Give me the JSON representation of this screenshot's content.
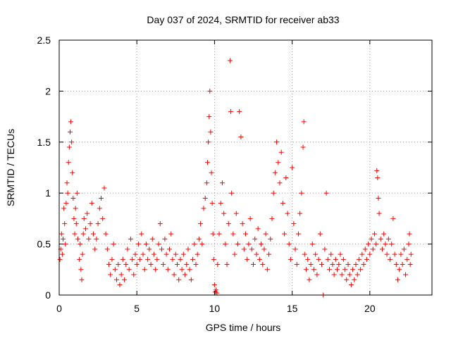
{
  "chart_data": {
    "type": "scatter",
    "title": "Day 037 of 2024, SRMTID for receiver ab33",
    "xlabel": "GPS time / hours",
    "ylabel": "SRMTID / TECUs",
    "xlim": [
      0,
      24
    ],
    "ylim": [
      0,
      2.5
    ],
    "xticks": [
      0,
      5,
      10,
      15,
      20
    ],
    "yticks": [
      0,
      0.5,
      1,
      1.5,
      2,
      2.5
    ],
    "grid": true,
    "marker_color": "#ff0000",
    "series": [
      {
        "name": "SRMTID",
        "points": [
          [
            0.05,
            0.35
          ],
          [
            0.1,
            0.45
          ],
          [
            0.15,
            0.6
          ],
          [
            0.2,
            0.4
          ],
          [
            0.25,
            0.55
          ],
          [
            0.3,
            0.85
          ],
          [
            0.35,
            0.7
          ],
          [
            0.4,
            0.5
          ],
          [
            0.45,
            0.9
          ],
          [
            0.5,
            1.1
          ],
          [
            0.55,
            1.0
          ],
          [
            0.6,
            1.3
          ],
          [
            0.65,
            1.45
          ],
          [
            0.7,
            1.6
          ],
          [
            0.75,
            1.7
          ],
          [
            0.8,
            1.5
          ],
          [
            0.85,
            1.2
          ],
          [
            0.9,
            0.95
          ],
          [
            0.95,
            0.75
          ],
          [
            1.0,
            0.6
          ],
          [
            1.05,
            0.85
          ],
          [
            1.1,
            0.7
          ],
          [
            1.15,
            1.0
          ],
          [
            1.2,
            0.55
          ],
          [
            1.3,
            0.35
          ],
          [
            1.35,
            0.5
          ],
          [
            1.4,
            0.25
          ],
          [
            1.45,
            0.15
          ],
          [
            1.5,
            0.4
          ],
          [
            1.55,
            0.6
          ],
          [
            1.6,
            0.75
          ],
          [
            1.7,
            0.65
          ],
          [
            1.8,
            0.8
          ],
          [
            1.9,
            0.55
          ],
          [
            2.0,
            0.7
          ],
          [
            2.1,
            0.9
          ],
          [
            2.2,
            0.6
          ],
          [
            2.3,
            0.45
          ],
          [
            2.4,
            0.55
          ],
          [
            2.5,
            0.7
          ],
          [
            2.6,
            0.85
          ],
          [
            2.7,
            0.95
          ],
          [
            2.8,
            0.75
          ],
          [
            2.9,
            1.05
          ],
          [
            3.0,
            0.6
          ],
          [
            3.1,
            0.45
          ],
          [
            3.2,
            0.3
          ],
          [
            3.3,
            0.2
          ],
          [
            3.4,
            0.35
          ],
          [
            3.5,
            0.5
          ],
          [
            3.6,
            0.25
          ],
          [
            3.7,
            0.15
          ],
          [
            3.8,
            0.3
          ],
          [
            3.9,
            0.1
          ],
          [
            4.0,
            0.2
          ],
          [
            4.1,
            0.35
          ],
          [
            4.2,
            0.15
          ],
          [
            4.3,
            0.3
          ],
          [
            4.4,
            0.45
          ],
          [
            4.5,
            0.25
          ],
          [
            4.6,
            0.55
          ],
          [
            4.7,
            0.35
          ],
          [
            4.8,
            0.2
          ],
          [
            4.9,
            0.4
          ],
          [
            5.0,
            0.3
          ],
          [
            5.1,
            0.5
          ],
          [
            5.2,
            0.35
          ],
          [
            5.3,
            0.6
          ],
          [
            5.4,
            0.4
          ],
          [
            5.5,
            0.25
          ],
          [
            5.6,
            0.5
          ],
          [
            5.7,
            0.35
          ],
          [
            5.8,
            0.45
          ],
          [
            5.9,
            0.3
          ],
          [
            6.0,
            0.55
          ],
          [
            6.1,
            0.4
          ],
          [
            6.2,
            0.25
          ],
          [
            6.3,
            0.35
          ],
          [
            6.4,
            0.5
          ],
          [
            6.5,
            0.7
          ],
          [
            6.6,
            0.45
          ],
          [
            6.7,
            0.3
          ],
          [
            6.8,
            0.55
          ],
          [
            6.9,
            0.4
          ],
          [
            7.0,
            0.25
          ],
          [
            7.1,
            0.45
          ],
          [
            7.2,
            0.6
          ],
          [
            7.3,
            0.35
          ],
          [
            7.4,
            0.2
          ],
          [
            7.5,
            0.4
          ],
          [
            7.6,
            0.3
          ],
          [
            7.7,
            0.15
          ],
          [
            7.8,
            0.35
          ],
          [
            7.9,
            0.25
          ],
          [
            8.0,
            0.4
          ],
          [
            8.1,
            0.2
          ],
          [
            8.2,
            0.3
          ],
          [
            8.3,
            0.45
          ],
          [
            8.4,
            0.25
          ],
          [
            8.5,
            0.15
          ],
          [
            8.6,
            0.35
          ],
          [
            8.7,
            0.5
          ],
          [
            8.8,
            0.3
          ],
          [
            8.9,
            0.4
          ],
          [
            9.0,
            0.55
          ],
          [
            9.1,
            0.7
          ],
          [
            9.2,
            0.5
          ],
          [
            9.3,
            0.85
          ],
          [
            9.4,
            0.95
          ],
          [
            9.5,
            1.1
          ],
          [
            9.55,
            1.3
          ],
          [
            9.6,
            1.5
          ],
          [
            9.65,
            1.75
          ],
          [
            9.7,
            2.0
          ],
          [
            9.75,
            1.6
          ],
          [
            9.8,
            1.2
          ],
          [
            9.85,
            0.9
          ],
          [
            9.9,
            0.6
          ],
          [
            9.95,
            0.35
          ],
          [
            10.0,
            0.1
          ],
          [
            10.05,
            0.03
          ],
          [
            10.1,
            0.05
          ],
          [
            10.15,
            0.02
          ],
          [
            10.2,
            0.3
          ],
          [
            10.3,
            0.6
          ],
          [
            10.4,
            0.9
          ],
          [
            10.5,
            1.1
          ],
          [
            10.6,
            0.8
          ],
          [
            10.7,
            0.5
          ],
          [
            10.8,
            0.3
          ],
          [
            10.9,
            0.7
          ],
          [
            11.0,
            2.3
          ],
          [
            11.05,
            1.8
          ],
          [
            11.1,
            1.0
          ],
          [
            11.2,
            0.6
          ],
          [
            11.3,
            0.4
          ],
          [
            11.4,
            0.8
          ],
          [
            11.5,
            0.5
          ],
          [
            11.6,
            1.8
          ],
          [
            11.7,
            1.55
          ],
          [
            11.8,
            0.7
          ],
          [
            11.9,
            0.45
          ],
          [
            12.0,
            0.6
          ],
          [
            12.1,
            0.35
          ],
          [
            12.2,
            0.5
          ],
          [
            12.3,
            0.75
          ],
          [
            12.4,
            0.45
          ],
          [
            12.5,
            0.3
          ],
          [
            12.6,
            0.55
          ],
          [
            12.7,
            0.4
          ],
          [
            12.8,
            0.65
          ],
          [
            12.9,
            0.35
          ],
          [
            13.0,
            0.5
          ],
          [
            13.1,
            0.3
          ],
          [
            13.2,
            0.45
          ],
          [
            13.3,
            0.6
          ],
          [
            13.4,
            0.25
          ],
          [
            13.5,
            0.4
          ],
          [
            13.6,
            0.55
          ],
          [
            13.7,
            0.75
          ],
          [
            13.8,
            1.0
          ],
          [
            13.9,
            1.2
          ],
          [
            14.0,
            1.5
          ],
          [
            14.1,
            1.3
          ],
          [
            14.2,
            1.1
          ],
          [
            14.3,
            1.4
          ],
          [
            14.4,
            0.9
          ],
          [
            14.5,
            0.6
          ],
          [
            14.6,
            1.15
          ],
          [
            14.7,
            0.8
          ],
          [
            14.8,
            0.5
          ],
          [
            14.9,
            0.35
          ],
          [
            15.0,
            1.25
          ],
          [
            15.1,
            0.7
          ],
          [
            15.2,
            0.45
          ],
          [
            15.3,
            0.3
          ],
          [
            15.4,
            0.6
          ],
          [
            15.5,
            0.8
          ],
          [
            15.6,
            1.0
          ],
          [
            15.7,
            1.45
          ],
          [
            15.75,
            1.7
          ],
          [
            15.8,
            0.4
          ],
          [
            15.9,
            0.25
          ],
          [
            16.0,
            0.35
          ],
          [
            16.1,
            0.15
          ],
          [
            16.2,
            0.3
          ],
          [
            16.3,
            0.5
          ],
          [
            16.4,
            0.25
          ],
          [
            16.5,
            0.4
          ],
          [
            16.6,
            0.2
          ],
          [
            16.7,
            0.35
          ],
          [
            16.8,
            0.6
          ],
          [
            16.9,
            0.3
          ],
          [
            17.0,
            0.0
          ],
          [
            17.1,
            0.45
          ],
          [
            17.2,
            1.0
          ],
          [
            17.3,
            0.35
          ],
          [
            17.4,
            0.25
          ],
          [
            17.5,
            0.4
          ],
          [
            17.6,
            0.3
          ],
          [
            17.7,
            0.2
          ],
          [
            17.8,
            0.35
          ],
          [
            17.9,
            0.25
          ],
          [
            18.0,
            0.3
          ],
          [
            18.1,
            0.4
          ],
          [
            18.2,
            0.2
          ],
          [
            18.3,
            0.35
          ],
          [
            18.4,
            0.25
          ],
          [
            18.5,
            0.15
          ],
          [
            18.6,
            0.3
          ],
          [
            18.7,
            0.2
          ],
          [
            18.8,
            0.1
          ],
          [
            18.9,
            0.25
          ],
          [
            19.0,
            0.15
          ],
          [
            19.1,
            0.3
          ],
          [
            19.2,
            0.2
          ],
          [
            19.3,
            0.35
          ],
          [
            19.4,
            0.25
          ],
          [
            19.5,
            0.4
          ],
          [
            19.6,
            0.3
          ],
          [
            19.7,
            0.45
          ],
          [
            19.8,
            0.35
          ],
          [
            19.9,
            0.5
          ],
          [
            20.0,
            0.4
          ],
          [
            20.1,
            0.55
          ],
          [
            20.2,
            0.45
          ],
          [
            20.3,
            0.6
          ],
          [
            20.4,
            0.5
          ],
          [
            20.45,
            1.22
          ],
          [
            20.5,
            1.15
          ],
          [
            20.55,
            0.95
          ],
          [
            20.6,
            0.8
          ],
          [
            20.7,
            0.55
          ],
          [
            20.8,
            0.45
          ],
          [
            20.9,
            0.6
          ],
          [
            21.0,
            0.5
          ],
          [
            21.1,
            0.4
          ],
          [
            21.2,
            0.55
          ],
          [
            21.3,
            0.35
          ],
          [
            21.4,
            0.5
          ],
          [
            21.5,
            0.75
          ],
          [
            21.6,
            0.4
          ],
          [
            21.7,
            0.3
          ],
          [
            21.8,
            0.15
          ],
          [
            21.9,
            0.25
          ],
          [
            22.0,
            0.4
          ],
          [
            22.1,
            0.3
          ],
          [
            22.2,
            0.45
          ],
          [
            22.3,
            0.2
          ],
          [
            22.4,
            0.35
          ],
          [
            22.5,
            0.5
          ],
          [
            22.55,
            0.6
          ],
          [
            22.6,
            0.3
          ],
          [
            22.65,
            0.4
          ]
        ]
      }
    ]
  }
}
